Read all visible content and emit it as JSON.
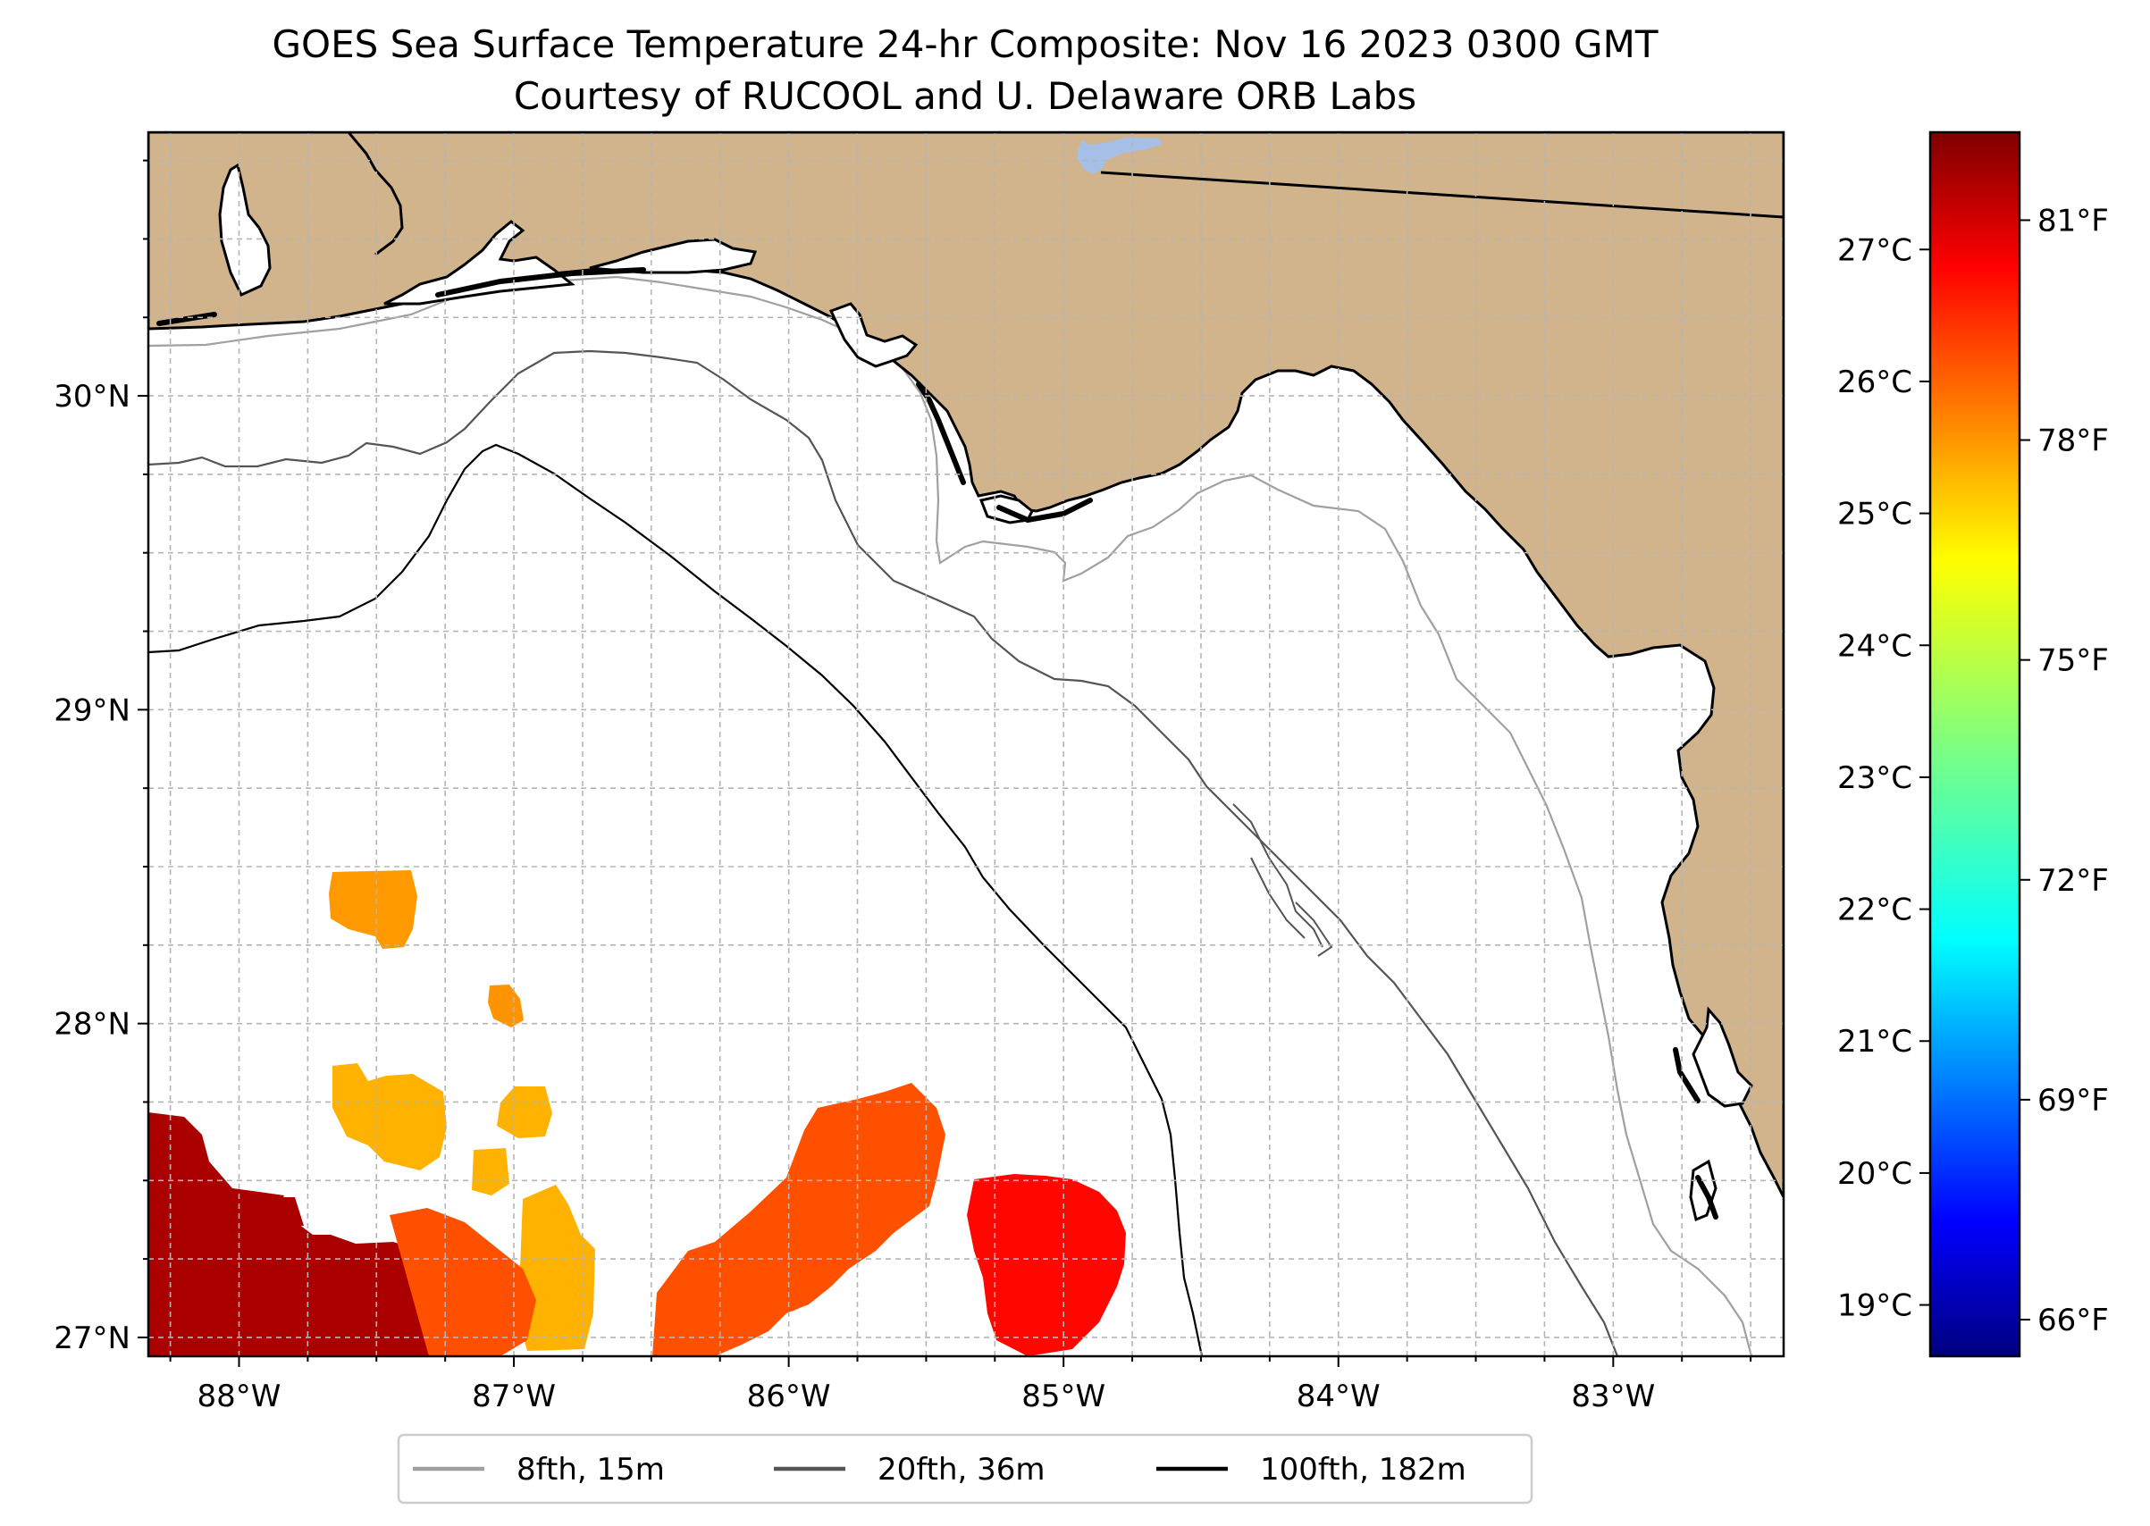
{
  "title": {
    "line1": "GOES Sea Surface Temperature 24-hr Composite: Nov 16 2023 0300 GMT",
    "line2": "Courtesy of RUCOOL and U. Delaware ORB Labs"
  },
  "map": {
    "lon_range": [
      -88.33,
      -82.38
    ],
    "lat_range": [
      26.94,
      30.84
    ],
    "lon_ticks": [
      {
        "value": -88,
        "label": "88°W"
      },
      {
        "value": -87,
        "label": "87°W"
      },
      {
        "value": -86,
        "label": "86°W"
      },
      {
        "value": -85,
        "label": "85°W"
      },
      {
        "value": -84,
        "label": "84°W"
      },
      {
        "value": -83,
        "label": "83°W"
      }
    ],
    "lat_ticks": [
      {
        "value": 27,
        "label": "27°N"
      },
      {
        "value": 28,
        "label": "28°N"
      },
      {
        "value": 29,
        "label": "29°N"
      },
      {
        "value": 30,
        "label": "30°N"
      }
    ],
    "gridlines": "dashed every 0.25°",
    "land_color": "#d2b48c",
    "ocean_color": "#ffffff",
    "lake_color": "#a6bfe6"
  },
  "colorbar": {
    "colormap": "jet",
    "range_f": [
      65.5,
      82.2
    ],
    "celsius_ticks": [
      {
        "value": 19,
        "label": "19°C"
      },
      {
        "value": 20,
        "label": "20°C"
      },
      {
        "value": 21,
        "label": "21°C"
      },
      {
        "value": 22,
        "label": "22°C"
      },
      {
        "value": 23,
        "label": "23°C"
      },
      {
        "value": 24,
        "label": "24°C"
      },
      {
        "value": 25,
        "label": "25°C"
      },
      {
        "value": 26,
        "label": "26°C"
      },
      {
        "value": 27,
        "label": "27°C"
      }
    ],
    "fahrenheit_ticks": [
      {
        "value": 66,
        "label": "66°F"
      },
      {
        "value": 69,
        "label": "69°F"
      },
      {
        "value": 72,
        "label": "72°F"
      },
      {
        "value": 75,
        "label": "75°F"
      },
      {
        "value": 78,
        "label": "78°F"
      },
      {
        "value": 81,
        "label": "81°F"
      }
    ]
  },
  "legend": {
    "items": [
      {
        "label": "8fth, 15m",
        "color": "#a0a0a0"
      },
      {
        "label": "20fth, 36m",
        "color": "#555555"
      },
      {
        "label": "100fth, 182m",
        "color": "#000000"
      }
    ]
  },
  "sst_patches": [
    {
      "name": "northwest-patch",
      "temp_f": 77.6
    },
    {
      "name": "small-patch",
      "temp_f": 77.7
    },
    {
      "name": "west-mid-patch",
      "temp_f": 77.2
    },
    {
      "name": "southwest-hot-patch",
      "temp_f": 81.5
    },
    {
      "name": "central-patch",
      "temp_f": 78.8
    },
    {
      "name": "east-patch",
      "temp_f": 80.0
    }
  ]
}
